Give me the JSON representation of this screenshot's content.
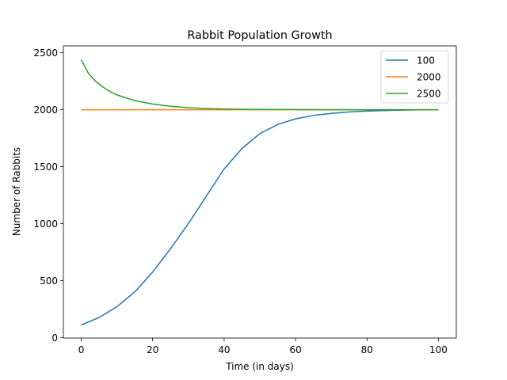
{
  "chart_data": {
    "type": "line",
    "title": "Rabbit Population Growth",
    "xlabel": "Time (in days)",
    "ylabel": "Number of Rabbits",
    "xlim": [
      -5,
      105
    ],
    "ylim": [
      -5,
      2560
    ],
    "xticks": [
      0,
      20,
      40,
      60,
      80,
      100
    ],
    "yticks": [
      0,
      500,
      1000,
      1500,
      2000,
      2500
    ],
    "grid": false,
    "legend_position": "top-right",
    "series": [
      {
        "name": "100",
        "color": "#1f77b4",
        "x": [
          0,
          5,
          10,
          15,
          20,
          25,
          30,
          35,
          40,
          45,
          50,
          55,
          60,
          65,
          70,
          75,
          80,
          85,
          90,
          95,
          100
        ],
        "y": [
          110,
          175,
          270,
          400,
          575,
          780,
          1000,
          1240,
          1480,
          1660,
          1790,
          1870,
          1920,
          1950,
          1968,
          1980,
          1988,
          1993,
          1996,
          1998,
          1999
        ]
      },
      {
        "name": "2000",
        "color": "#ff7f0e",
        "x": [
          0,
          25,
          50,
          75,
          100
        ],
        "y": [
          2000,
          2000,
          2000,
          2000,
          2000
        ]
      },
      {
        "name": "2500",
        "color": "#2ca02c",
        "x": [
          0,
          2,
          4,
          6,
          8,
          10,
          15,
          20,
          25,
          30,
          35,
          40,
          50,
          60,
          70,
          80,
          90,
          100
        ],
        "y": [
          2440,
          2320,
          2250,
          2200,
          2160,
          2130,
          2080,
          2050,
          2030,
          2018,
          2010,
          2006,
          2002,
          2001,
          2000,
          2000,
          2000,
          2000
        ]
      }
    ]
  }
}
